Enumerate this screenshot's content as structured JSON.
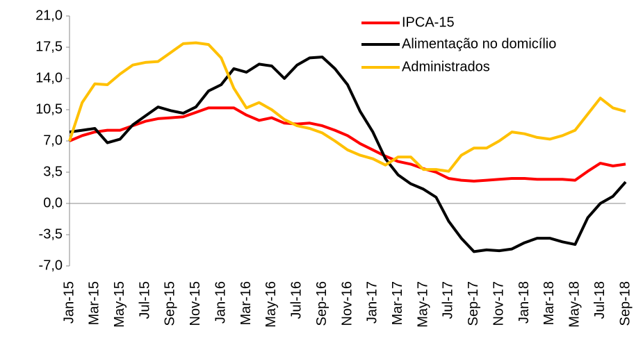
{
  "chart_data": {
    "type": "line",
    "categories": [
      "Jan-15",
      null,
      "Mar-15",
      null,
      "May-15",
      null,
      "Jul-15",
      null,
      "Sep-15",
      null,
      "Nov-15",
      null,
      "Jan-16",
      null,
      "Mar-16",
      null,
      "May-16",
      null,
      "Jul-16",
      null,
      "Sep-16",
      null,
      "Nov-16",
      null,
      "Jan-17",
      null,
      "Mar-17",
      null,
      "May-17",
      null,
      "Jul-17",
      null,
      "Sep-17",
      null,
      "Nov-17",
      null,
      "Jan-18",
      null,
      "Mar-18",
      null,
      "May-18",
      null,
      "Jul-18",
      null,
      "Sep-18"
    ],
    "series": [
      {
        "name": "IPCA-15",
        "color": "#ff0000",
        "values": [
          7.0,
          7.6,
          8.0,
          8.2,
          8.2,
          8.7,
          9.2,
          9.5,
          9.6,
          9.7,
          10.2,
          10.7,
          10.7,
          10.7,
          9.9,
          9.3,
          9.6,
          9.0,
          8.9,
          9.0,
          8.7,
          8.2,
          7.6,
          6.7,
          6.0,
          5.3,
          4.7,
          4.4,
          3.9,
          3.5,
          2.8,
          2.6,
          2.5,
          2.6,
          2.7,
          2.8,
          2.8,
          2.7,
          2.7,
          2.7,
          2.6,
          3.6,
          4.5,
          4.2,
          4.4
        ]
      },
      {
        "name": "Alimentação no domicílio",
        "color": "#000000",
        "values": [
          8.0,
          8.2,
          8.4,
          6.8,
          7.2,
          8.8,
          9.8,
          10.8,
          10.4,
          10.1,
          10.8,
          12.6,
          13.3,
          15.1,
          14.7,
          15.6,
          15.4,
          14.0,
          15.5,
          16.3,
          16.4,
          15.1,
          13.3,
          10.3,
          8.0,
          5.0,
          3.2,
          2.2,
          1.6,
          0.7,
          -2.0,
          -3.9,
          -5.4,
          -5.2,
          -5.3,
          -5.1,
          -4.4,
          -3.9,
          -3.9,
          -4.3,
          -4.6,
          -1.6,
          0.0,
          0.8,
          2.4
        ]
      },
      {
        "name": "Administrados",
        "color": "#ffc000",
        "values": [
          7.0,
          11.3,
          13.4,
          13.3,
          14.5,
          15.5,
          15.8,
          15.9,
          16.9,
          17.9,
          18.0,
          17.8,
          16.3,
          12.9,
          10.7,
          11.3,
          10.5,
          9.4,
          8.7,
          8.4,
          7.9,
          7.0,
          6.0,
          5.4,
          5.0,
          4.3,
          5.2,
          5.2,
          3.8,
          3.8,
          3.6,
          5.4,
          6.2,
          6.2,
          7.0,
          8.0,
          7.8,
          7.4,
          7.2,
          7.6,
          8.2,
          10.0,
          11.8,
          10.7,
          10.3
        ]
      }
    ],
    "ylim": [
      -7,
      21
    ],
    "yticks": [
      {
        "value": -7,
        "label": "-7,0"
      },
      {
        "value": -3.5,
        "label": "-3,5"
      },
      {
        "value": 0,
        "label": "0,0"
      },
      {
        "value": 3.5,
        "label": "3,5"
      },
      {
        "value": 7,
        "label": "7,0"
      },
      {
        "value": 10.5,
        "label": "10,5"
      },
      {
        "value": 14,
        "label": "14,0"
      },
      {
        "value": 17.5,
        "label": "17,5"
      },
      {
        "value": 21,
        "label": "21,0"
      }
    ],
    "legend": "top-right",
    "grid": false
  }
}
